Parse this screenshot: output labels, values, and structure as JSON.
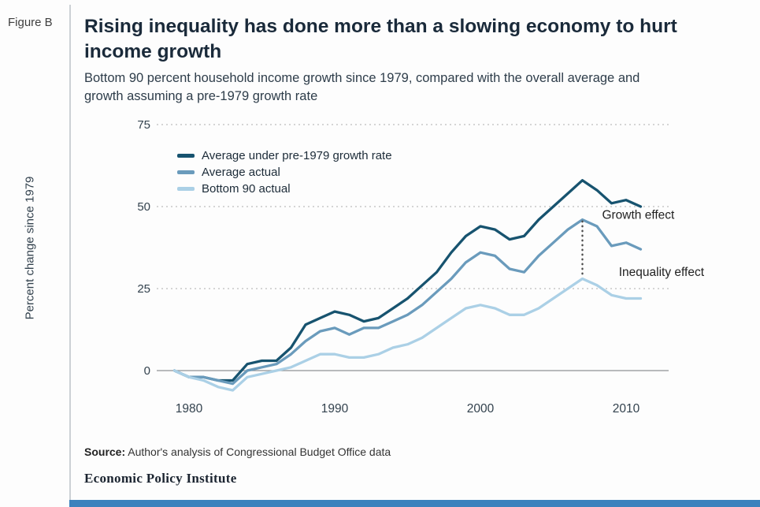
{
  "page": {
    "figure_label": "Figure B",
    "title": "Rising inequality has done more than a slowing economy to hurt income growth",
    "subtitle": "Bottom 90 percent household income growth since 1979, compared with the overall average and growth assuming a pre-1979 growth rate",
    "source_label": "Source:",
    "source_text": " Author's analysis of Congressional Budget Office data",
    "brand": "Economic Policy Institute"
  },
  "colors": {
    "grid": "#c8c8c8",
    "zero_line": "#8f9396",
    "tick_label": "#33424e",
    "annotation_text": "#222222",
    "marker_line": "#4a4a4a",
    "accent_bar": "#3b82bd"
  },
  "chart_data": {
    "type": "line",
    "title": "Rising inequality has done more than a slowing economy to hurt income growth",
    "xlabel": "",
    "ylabel": "Percent change since 1979",
    "ylim": [
      -10,
      75
    ],
    "yticks": [
      0,
      25,
      50,
      75
    ],
    "xticks": [
      1980,
      1990,
      2000,
      2010
    ],
    "grid": "dotted-horizontal",
    "legend_position": "top-left-inside",
    "x": [
      1979,
      1980,
      1981,
      1982,
      1983,
      1984,
      1985,
      1986,
      1987,
      1988,
      1989,
      1990,
      1991,
      1992,
      1993,
      1994,
      1995,
      1996,
      1997,
      1998,
      1999,
      2000,
      2001,
      2002,
      2003,
      2004,
      2005,
      2006,
      2007,
      2008,
      2009,
      2010,
      2011
    ],
    "series": [
      {
        "name": "Average under pre-1979 growth rate",
        "color": "#17536f",
        "values": [
          0,
          -2,
          -2,
          -3,
          -3,
          2,
          3,
          3,
          7,
          14,
          16,
          18,
          17,
          15,
          16,
          19,
          22,
          26,
          30,
          36,
          41,
          44,
          43,
          40,
          41,
          46,
          50,
          54,
          58,
          55,
          51,
          52,
          50
        ]
      },
      {
        "name": "Average actual",
        "color": "#6a9bbc",
        "values": [
          0,
          -2,
          -2,
          -3,
          -4,
          0,
          1,
          2,
          5,
          9,
          12,
          13,
          11,
          13,
          13,
          15,
          17,
          20,
          24,
          28,
          33,
          36,
          35,
          31,
          30,
          35,
          39,
          43,
          46,
          44,
          38,
          39,
          37
        ]
      },
      {
        "name": "Bottom 90 actual",
        "color": "#abd0e6",
        "values": [
          0,
          -2,
          -3,
          -5,
          -6,
          -2,
          -1,
          0,
          1,
          3,
          5,
          5,
          4,
          4,
          5,
          7,
          8,
          10,
          13,
          16,
          19,
          20,
          19,
          17,
          17,
          19,
          22,
          25,
          28,
          26,
          23,
          22,
          22
        ]
      }
    ],
    "annotations": [
      {
        "text": "Growth effect",
        "x": 2008.35,
        "y": 47.5
      },
      {
        "text": "Inequality effect",
        "x": 2009.5,
        "y": 30
      }
    ],
    "marker_line": {
      "x": 2007,
      "y_from": 45.5,
      "y_to": 29.5
    }
  }
}
